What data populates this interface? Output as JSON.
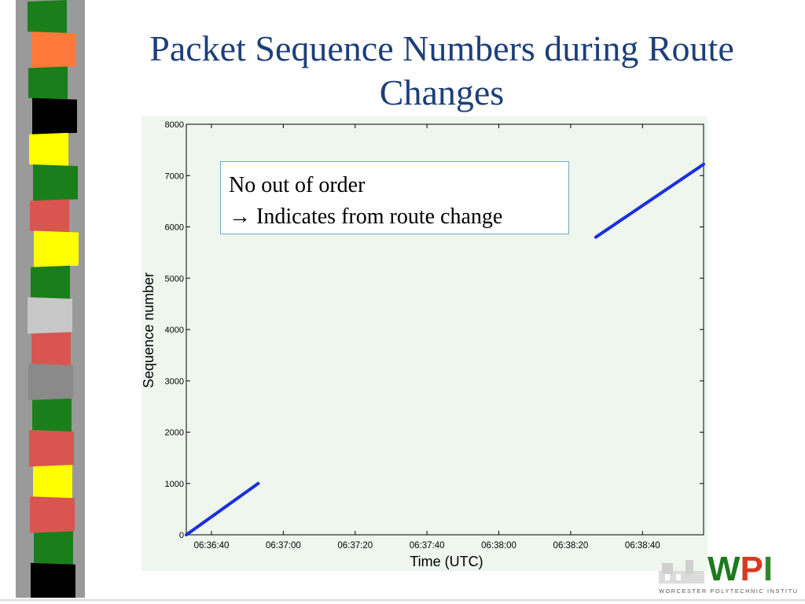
{
  "slide": {
    "title": "Packet Sequence Numbers during Route Changes"
  },
  "callout": {
    "line1": "No out of order",
    "arrow_glyph": "→",
    "line2": "Indicates from route change"
  },
  "logo": {
    "text": "WPI",
    "subtitle": "WORCESTER POLYTECHNIC INSTITUTE",
    "colors": {
      "w": "#1f7a1f",
      "p": "#d93a1e",
      "i": "#2c8a2c"
    }
  },
  "decor": {
    "strip_colors": [
      "#1a7f1a",
      "#ff7a3a",
      "#1a7f1a",
      "#000000",
      "#ffff00",
      "#1a7f1a",
      "#d9554f",
      "#ffff00",
      "#1a7f1a",
      "#c8c8c8",
      "#d9554f",
      "#8a8a8a",
      "#1a7f1a",
      "#d9554f",
      "#ffff00",
      "#d9554f",
      "#1a7f1a",
      "#000000"
    ]
  },
  "chart_data": {
    "type": "line",
    "title": "",
    "xlabel": "Time (UTC)",
    "ylabel": "Sequence number",
    "x_ticks": [
      "06:36:40",
      "06:37:00",
      "06:37:20",
      "06:37:40",
      "06:38:00",
      "06:38:20",
      "06:38:40"
    ],
    "y_ticks": [
      "0",
      "1000",
      "2000",
      "3000",
      "4000",
      "5000",
      "6000",
      "7000",
      "8000"
    ],
    "xlim": [
      "06:36:33",
      "06:38:57"
    ],
    "ylim": [
      0,
      8000
    ],
    "grid": false,
    "color": "#1a2ee0",
    "series": [
      {
        "points": [
          {
            "x": "06:36:33",
            "y": 0
          },
          {
            "x": "06:36:53",
            "y": 1000
          }
        ]
      },
      {
        "points": [
          {
            "x": "06:38:27",
            "y": 5800
          },
          {
            "x": "06:38:57",
            "y": 7220
          }
        ]
      }
    ]
  }
}
